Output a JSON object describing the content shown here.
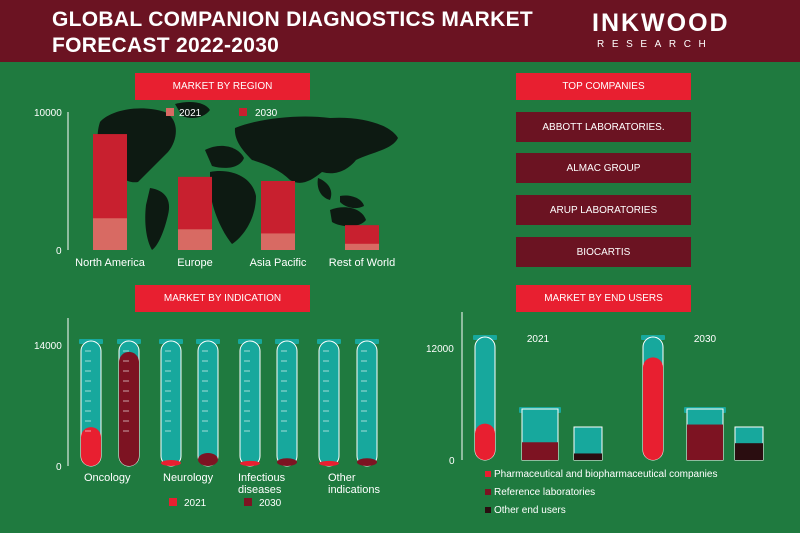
{
  "header": {
    "title_line1": "GLOBAL COMPANION DIAGNOSTICS MARKET",
    "title_line2": "FORECAST 2022-2030",
    "brand": "INKWOOD",
    "brand_sub": "RESEARCH"
  },
  "colors": {
    "background": "#1f7a3f",
    "header": "#6b1322",
    "accent_red": "#e81f30",
    "teal": "#1a9b93",
    "dark_red": "#7d1322",
    "near_black": "#2a0d10"
  },
  "section_labels": {
    "region": "MARKET BY REGION",
    "companies": "TOP COMPANIES",
    "indication": "MARKET BY INDICATION",
    "end_users": "MARKET BY END USERS"
  },
  "top_companies": [
    "ABBOTT LABORATORIES.",
    "ALMAC GROUP",
    "ARUP LABORATORIES",
    "BIOCARTIS"
  ],
  "chart_data": [
    {
      "type": "bar",
      "title": "MARKET BY REGION",
      "categories": [
        "North America",
        "Europe",
        "Asia Pacific",
        "Rest of World"
      ],
      "series": [
        {
          "name": "2021",
          "values": [
            2300,
            1500,
            1200,
            450
          ]
        },
        {
          "name": "2030",
          "values": [
            8400,
            5300,
            5000,
            1800
          ]
        }
      ],
      "ylim": [
        0,
        10000
      ],
      "yticks": [
        "0",
        "10000"
      ],
      "legend": "top"
    },
    {
      "type": "bar",
      "title": "MARKET BY INDICATION",
      "categories": [
        "Oncology",
        "Neurology",
        "Infectious diseases",
        "Other indications"
      ],
      "category_lines": [
        [
          "Oncology"
        ],
        [
          "Neurology"
        ],
        [
          "Infectious",
          "diseases"
        ],
        [
          "Other",
          "indications"
        ]
      ],
      "series": [
        {
          "name": "2021",
          "values": [
            4500,
            700,
            600,
            600
          ]
        },
        {
          "name": "2030",
          "values": [
            13200,
            1500,
            900,
            900
          ]
        }
      ],
      "ylim": [
        0,
        14000
      ],
      "yticks": [
        "0",
        "14000"
      ],
      "legend": "bottom"
    },
    {
      "type": "bar",
      "title": "MARKET BY END USERS",
      "categories": [
        "2021",
        "2030"
      ],
      "series": [
        {
          "name": "Pharmaceutical and biopharmaceutical companies",
          "values": [
            3900,
            11000
          ]
        },
        {
          "name": "Reference laboratories",
          "values": [
            1900,
            3800
          ]
        },
        {
          "name": "Other end users",
          "values": [
            700,
            1800
          ]
        }
      ],
      "ylim": [
        0,
        12000
      ],
      "yticks": [
        "0",
        "12000"
      ],
      "legend": "bottom"
    }
  ]
}
